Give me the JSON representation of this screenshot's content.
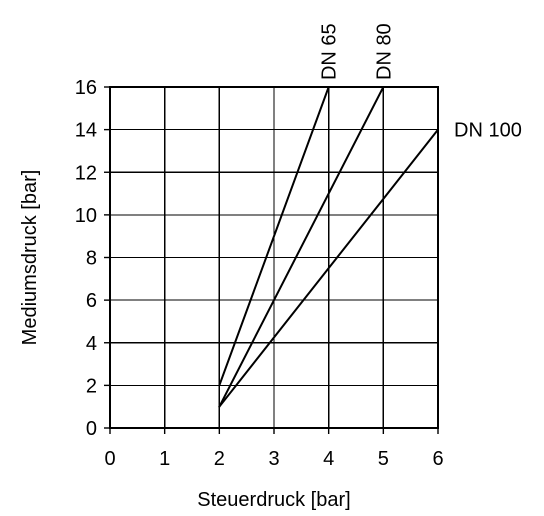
{
  "chart_data": {
    "type": "line",
    "xlabel": "Steuerdruck [bar]",
    "ylabel": "Mediumsdruck [bar]",
    "xlim": [
      0,
      6
    ],
    "ylim": [
      0,
      16
    ],
    "x_ticks": [
      0,
      1,
      2,
      3,
      4,
      5,
      6
    ],
    "y_ticks": [
      0,
      2,
      4,
      6,
      8,
      10,
      12,
      14,
      16
    ],
    "grid": true,
    "series": [
      {
        "name": "DN 65",
        "x": [
          2,
          4
        ],
        "y": [
          2,
          16
        ],
        "label_orientation": "vertical"
      },
      {
        "name": "DN 80",
        "x": [
          2,
          5
        ],
        "y": [
          1,
          16
        ],
        "label_orientation": "vertical"
      },
      {
        "name": "DN 100",
        "x": [
          2,
          6
        ],
        "y": [
          1,
          14
        ],
        "label_orientation": "horizontal"
      }
    ]
  }
}
